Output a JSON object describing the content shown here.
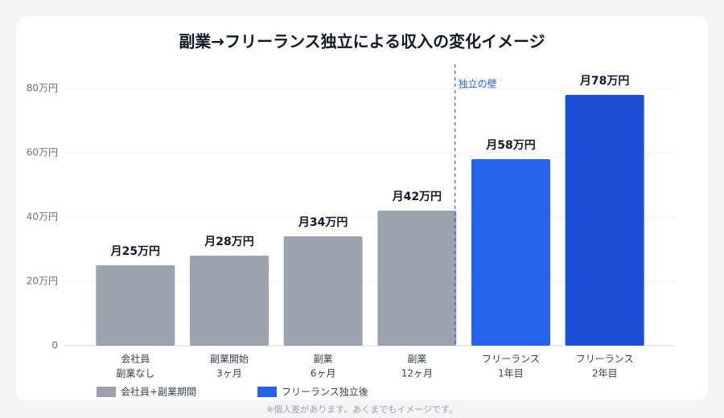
{
  "chart_data": {
    "type": "bar",
    "title": "副業→フリーランス独立による収入の変化イメージ",
    "categories": [
      [
        "会社員",
        "副業なし"
      ],
      [
        "副業開始",
        "3ヶ月"
      ],
      [
        "副業",
        "6ヶ月"
      ],
      [
        "副業",
        "12ヶ月"
      ],
      [
        "フリーランス",
        "1年目"
      ],
      [
        "フリーランス",
        "2年目"
      ]
    ],
    "values": [
      25,
      28,
      34,
      42,
      58,
      78
    ],
    "value_labels": [
      "月25万円",
      "月28万円",
      "月34万円",
      "月42万円",
      "月58万円",
      "月78万円"
    ],
    "colors": [
      "#9ca3af",
      "#9ca3af",
      "#9ca3af",
      "#9ca3af",
      "#2563eb",
      "#1d4ed8"
    ],
    "ylim": [
      0,
      87.5
    ],
    "yticks": [
      0,
      {
        "value": 20,
        "label": "20万円"
      },
      {
        "value": 40,
        "label": "40万円"
      },
      {
        "value": 60,
        "label": "60万円"
      },
      {
        "value": 80,
        "label": "80万円"
      }
    ],
    "grid": true,
    "annotation": "独立の壁",
    "legend": [
      {
        "name": "会社員+副業期間",
        "color": "#9ca3af"
      },
      {
        "name": "フリーランス独立後",
        "color": "#2563eb"
      }
    ],
    "footnote": "※個人差があります。あくまでもイメージです。"
  }
}
